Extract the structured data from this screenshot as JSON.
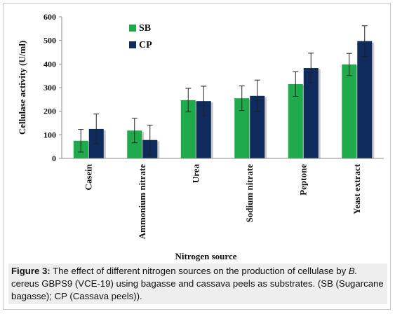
{
  "chart_data": {
    "type": "bar",
    "categories": [
      "Casein",
      "Ammonium nitrate",
      "Urea",
      "Sodium nitrate",
      "Peptone",
      "Yeast extract"
    ],
    "series": [
      {
        "name": "SB",
        "color": "#1faa4b",
        "values": [
          75,
          118,
          247,
          255,
          315,
          398
        ],
        "errors": [
          48,
          52,
          50,
          52,
          52,
          47
        ]
      },
      {
        "name": "CP",
        "color": "#0f2a5c",
        "values": [
          125,
          78,
          243,
          265,
          383,
          497
        ],
        "errors": [
          63,
          63,
          63,
          67,
          63,
          65
        ]
      }
    ],
    "xlabel": "Nitrogen source",
    "ylabel": "Cellulase activity (U/ml)",
    "ylim": [
      0,
      600
    ],
    "yticks": [
      "0",
      "100",
      "200",
      "300",
      "400",
      "500",
      "600"
    ],
    "grid": false,
    "legend_position": "top-left"
  },
  "caption": {
    "label": "Figure 3:",
    "text_before_italic": " The effect of different nitrogen sources on the production of cellulase by ",
    "italic": "B.",
    "text_after_italic": " cereus GBPS9 (VCE-19) using bagasse and cassava peels as substrates. (SB (Sugarcane bagasse); CP (Cassava peels))."
  }
}
